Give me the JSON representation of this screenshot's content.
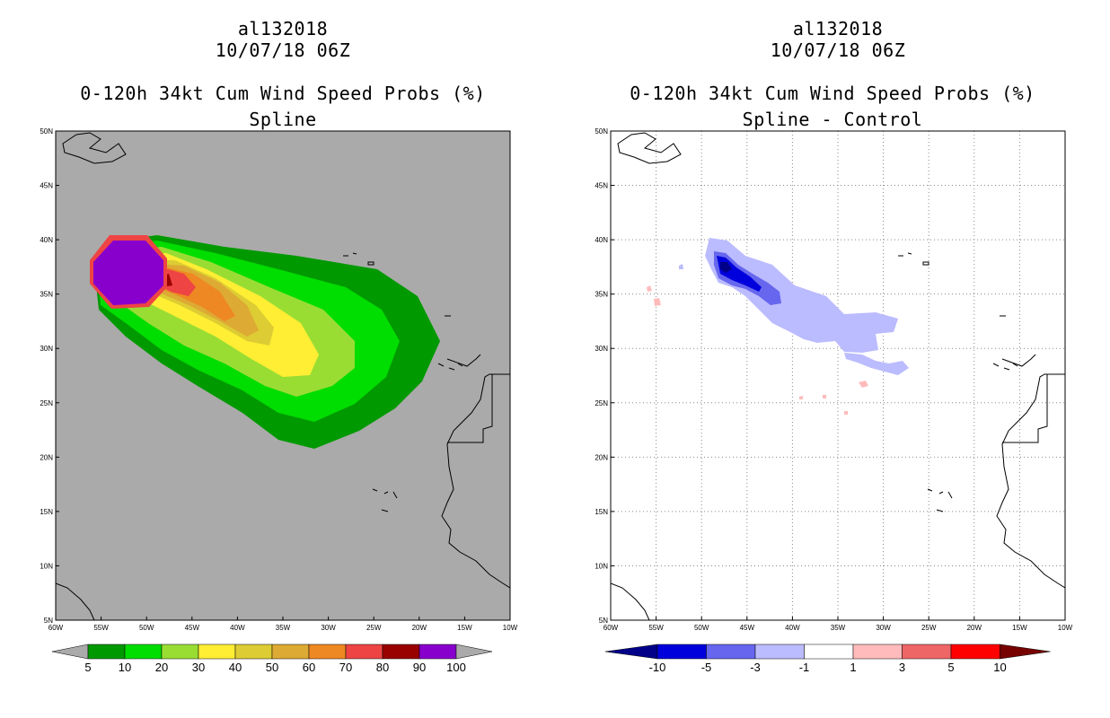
{
  "left": {
    "storm_id": "al132018",
    "datetime": "10/07/18 06Z",
    "product": "0-120h 34kt Cum Wind Speed Probs (%)",
    "subtitle": "Spline",
    "lat_labels": [
      "50N",
      "45N",
      "40N",
      "35N",
      "30N",
      "25N",
      "20N",
      "15N",
      "10N",
      "5N"
    ],
    "lon_labels": [
      "60W",
      "55W",
      "50W",
      "45W",
      "40W",
      "35W",
      "30W",
      "25W",
      "20W",
      "15W",
      "10W"
    ],
    "colorbar": {
      "labels": [
        "5",
        "10",
        "20",
        "30",
        "40",
        "50",
        "60",
        "70",
        "80",
        "90",
        "100"
      ],
      "colors": [
        "#009900",
        "#00dd00",
        "#99dd33",
        "#ffee33",
        "#ddcc33",
        "#ddaa33",
        "#ee8822",
        "#ee4444",
        "#990000",
        "#8800cc"
      ],
      "end_color": "#aaaaaa"
    },
    "colors": {
      "background": "#aaaaaa"
    }
  },
  "right": {
    "storm_id": "al132018",
    "datetime": "10/07/18 06Z",
    "product": "0-120h 34kt Cum Wind Speed Probs (%)",
    "subtitle": "Spline - Control",
    "lat_labels": [
      "50N",
      "45N",
      "40N",
      "35N",
      "30N",
      "25N",
      "20N",
      "15N",
      "10N",
      "5N"
    ],
    "lon_labels": [
      "60W",
      "55W",
      "50W",
      "45W",
      "40W",
      "35W",
      "30W",
      "25W",
      "20W",
      "15W",
      "10W"
    ],
    "colorbar": {
      "labels": [
        "-10",
        "-5",
        "-3",
        "-1",
        "1",
        "3",
        "5",
        "10"
      ],
      "colors": [
        "#0000dd",
        "#6666ee",
        "#bbbbff",
        "#ffffff",
        "#ffbbbb",
        "#ee6666",
        "#ff0000"
      ],
      "neg_end": "#000088",
      "pos_end": "#770000"
    },
    "colors": {
      "background": "#ffffff"
    }
  }
}
